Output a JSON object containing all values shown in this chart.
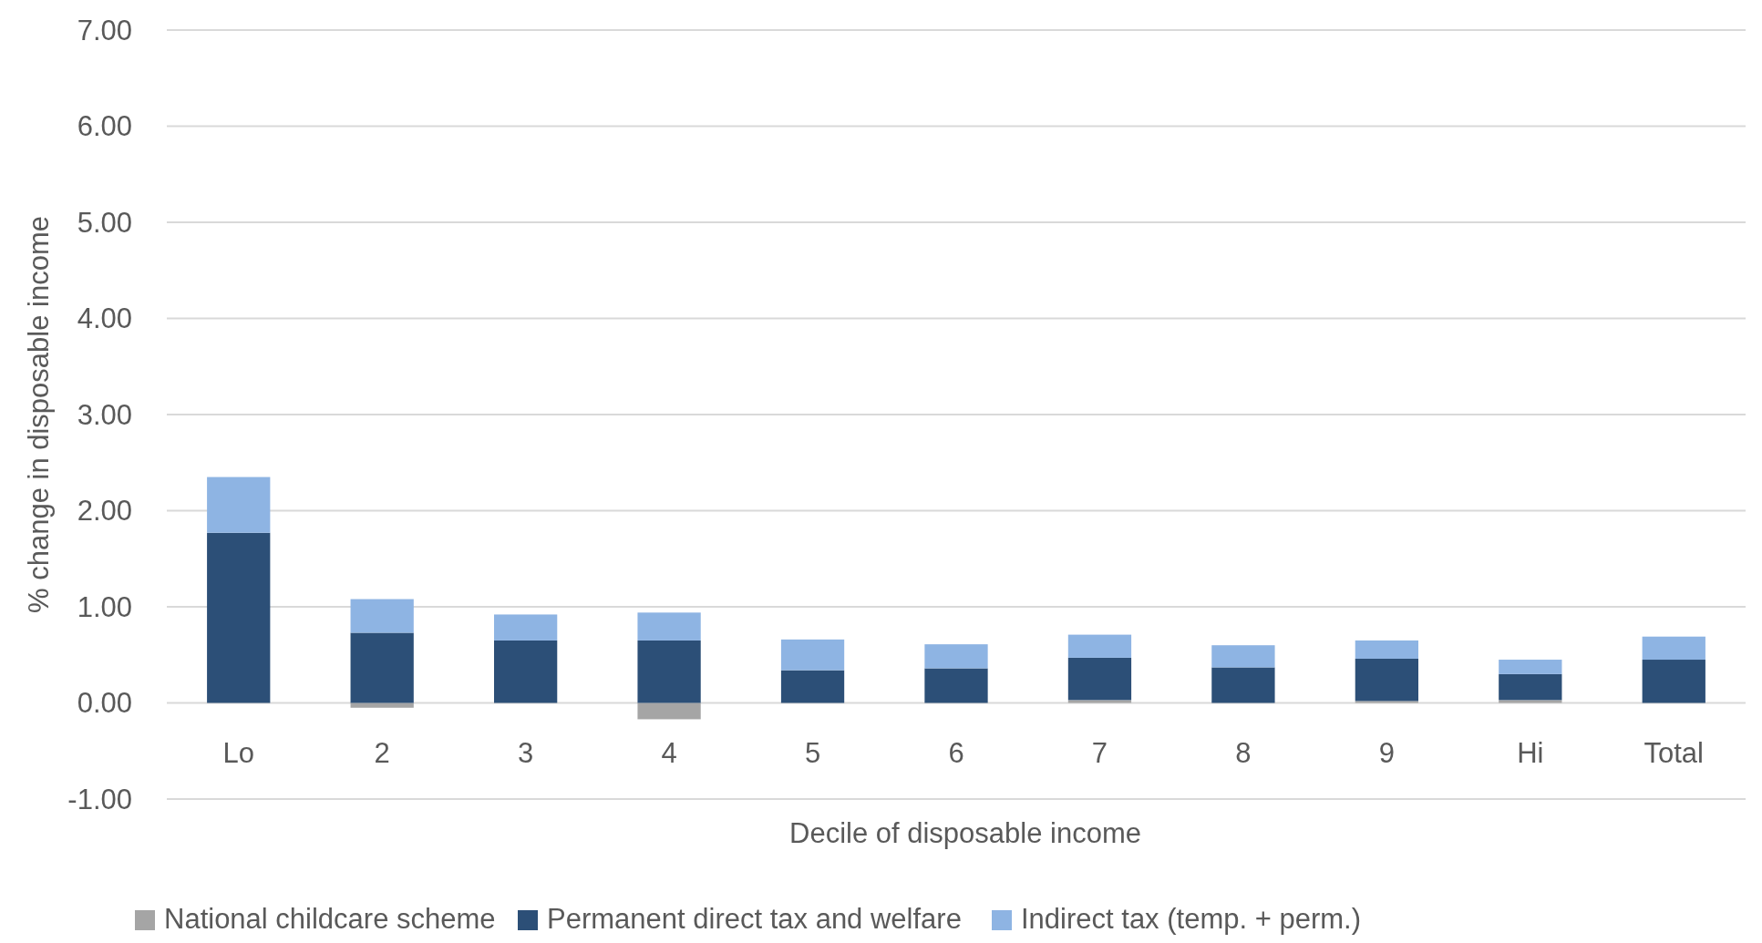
{
  "chart_data": {
    "type": "bar",
    "stacked": true,
    "xlabel": "Decile of disposable income",
    "ylabel": "% change in disposable income",
    "categories": [
      "Lo",
      "2",
      "3",
      "4",
      "5",
      "6",
      "7",
      "8",
      "9",
      "Hi",
      "Total"
    ],
    "series": [
      {
        "name": "National childcare scheme",
        "color": "#a5a5a5",
        "values": [
          0,
          -0.05,
          0,
          -0.17,
          0,
          0,
          0.03,
          0,
          0.02,
          0.03,
          0
        ]
      },
      {
        "name": "Permanent direct tax and welfare",
        "color": "#2c4f77",
        "values": [
          1.77,
          0.73,
          0.65,
          0.65,
          0.34,
          0.36,
          0.44,
          0.37,
          0.44,
          0.27,
          0.45
        ]
      },
      {
        "name": "Indirect tax (temp. + perm.)",
        "color": "#8eb4e3",
        "values": [
          0.58,
          0.35,
          0.27,
          0.29,
          0.32,
          0.25,
          0.24,
          0.23,
          0.19,
          0.15,
          0.24
        ]
      }
    ],
    "ylim": [
      -1,
      7
    ],
    "yticks": [
      {
        "value": -1,
        "label": "-1.00"
      },
      {
        "value": 0,
        "label": "0.00"
      },
      {
        "value": 1,
        "label": "1.00"
      },
      {
        "value": 2,
        "label": "2.00"
      },
      {
        "value": 3,
        "label": "3.00"
      },
      {
        "value": 4,
        "label": "4.00"
      },
      {
        "value": 5,
        "label": "5.00"
      },
      {
        "value": 6,
        "label": "6.00"
      },
      {
        "value": 7,
        "label": "7.00"
      }
    ],
    "grid": "y",
    "legend": "bottom"
  }
}
